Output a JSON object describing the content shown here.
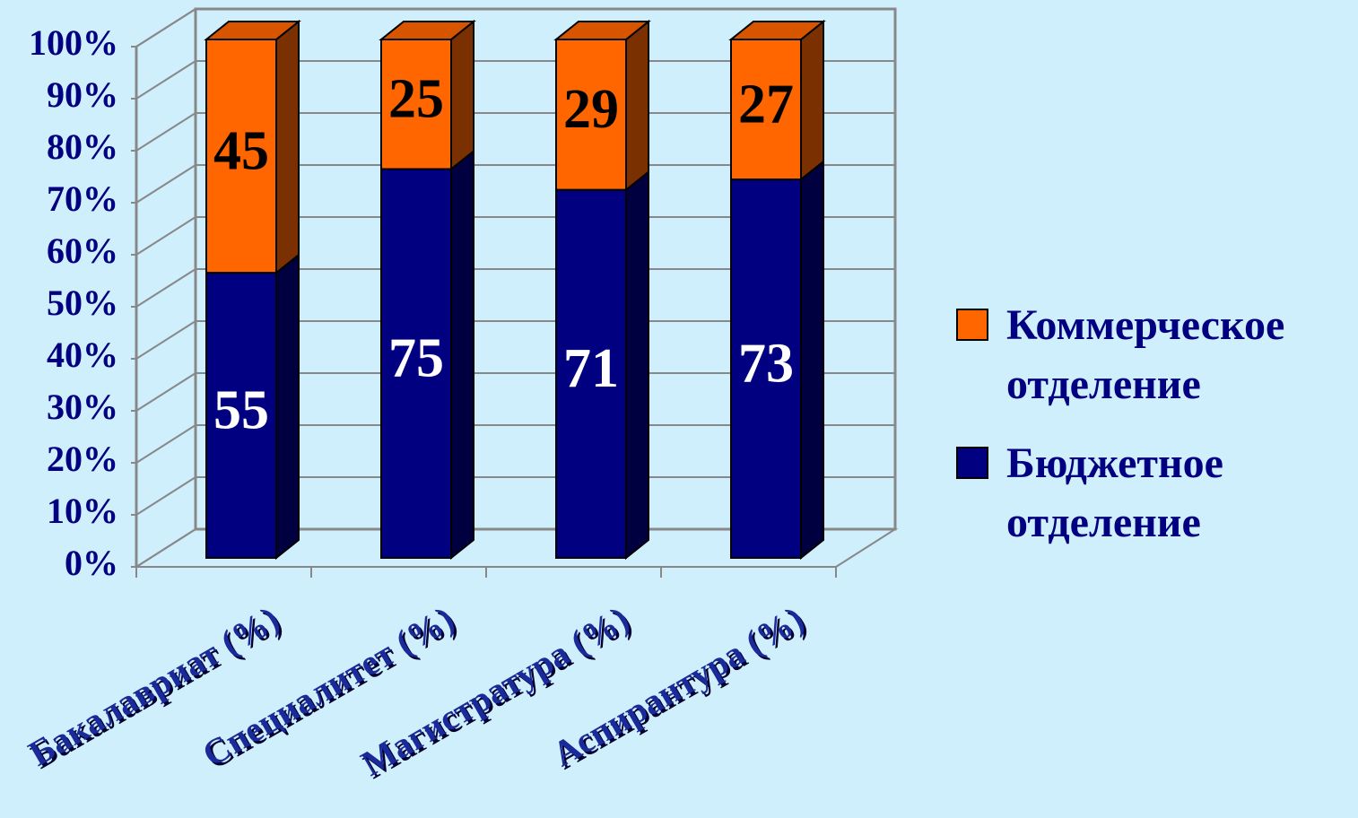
{
  "chart_data": {
    "type": "stacked_bar_3d",
    "categories": [
      "Бакалавриат (%)",
      "Специалитет (%)",
      "Магистратура (%)",
      "Аспирантура (%)"
    ],
    "series": [
      {
        "name": "Бюджетное отделение",
        "color": "#000080",
        "values": [
          55,
          75,
          71,
          73
        ]
      },
      {
        "name": "Коммерческое отделение",
        "color": "#ff6600",
        "values": [
          45,
          25,
          29,
          27
        ]
      }
    ],
    "ylim": [
      0,
      100
    ],
    "yticks": [
      {
        "value": 0,
        "label": "0%"
      },
      {
        "value": 10,
        "label": "10%"
      },
      {
        "value": 20,
        "label": "20%"
      },
      {
        "value": 30,
        "label": "30%"
      },
      {
        "value": 40,
        "label": "40%"
      },
      {
        "value": 50,
        "label": "50%"
      },
      {
        "value": 60,
        "label": "60%"
      },
      {
        "value": 70,
        "label": "70%"
      },
      {
        "value": 80,
        "label": "80%"
      },
      {
        "value": 90,
        "label": "90%"
      },
      {
        "value": 100,
        "label": "100%"
      }
    ],
    "grid": true,
    "legend": "right"
  }
}
